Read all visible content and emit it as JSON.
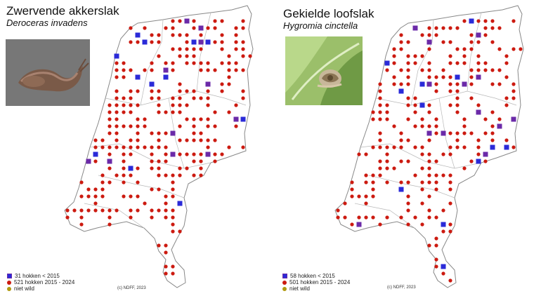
{
  "colors": {
    "hokken_recent": "#cc1a10",
    "hokken_old": "#2a2ad8",
    "hokken_both": "#6b2aa8",
    "niet_wild": "#b09a10",
    "border": "#888888"
  },
  "maps": [
    {
      "title": "Zwervende akkerslak",
      "subtitle": "Deroceras invadens",
      "photo_icon": "slug-photo",
      "legend": [
        {
          "marker": "square",
          "label": "31 hokken < 2015"
        },
        {
          "marker": "dot",
          "label": "521 hokken 2015 - 2024"
        },
        {
          "marker": "dot-olive",
          "label": "niet wild"
        }
      ],
      "copyright": "(c) NDFF, 2023",
      "seed": 7
    },
    {
      "title": "Gekielde loofslak",
      "subtitle": "Hygromia cinctella",
      "photo_icon": "snail-photo",
      "legend": [
        {
          "marker": "square",
          "label": "58 hokken < 2015"
        },
        {
          "marker": "dot",
          "label": "501 hokken 2015 - 2024"
        },
        {
          "marker": "dot-olive",
          "label": "niet wild"
        }
      ],
      "copyright": "(c) NDFF, 2023",
      "seed": 19
    }
  ]
}
